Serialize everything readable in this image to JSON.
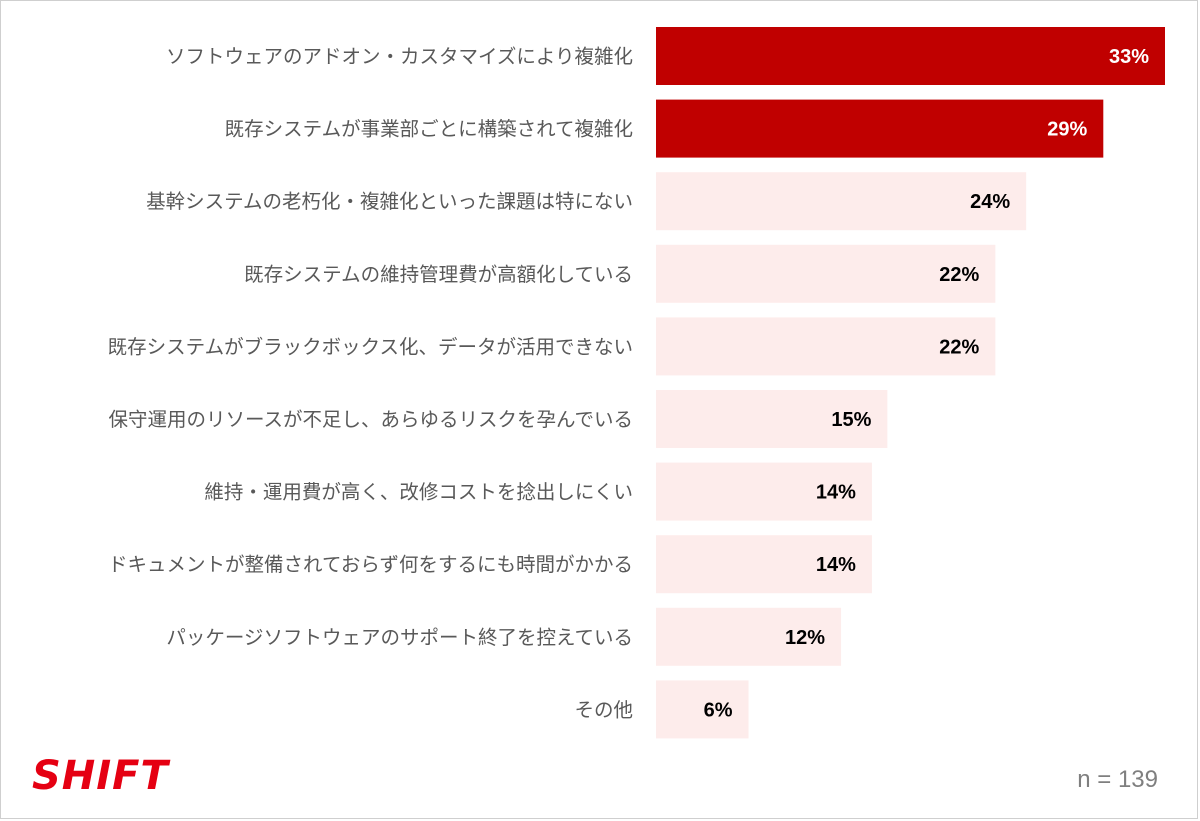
{
  "chart_data": {
    "type": "bar",
    "orientation": "horizontal",
    "categories": [
      "ソフトウェアのアドオン・カスタマイズにより複雑化",
      "既存システムが事業部ごとに構築されて複雑化",
      "基幹システムの老朽化・複雑化といった課題は特にない",
      "既存システムの維持管理費が高額化している",
      "既存システムがブラックボックス化、データが活用できない",
      "保守運用のリソースが不足し、あらゆるリスクを孕んでいる",
      "維持・運用費が高く、改修コストを捻出しにくい",
      "ドキュメントが整備されておらず何をするにも時間がかかる",
      "パッケージソフトウェアのサポート終了を控えている",
      "その他"
    ],
    "values": [
      33,
      29,
      24,
      22,
      22,
      15,
      14,
      14,
      12,
      6
    ],
    "value_labels": [
      "33%",
      "29%",
      "24%",
      "22%",
      "22%",
      "15%",
      "14%",
      "14%",
      "12%",
      "6%"
    ],
    "highlighted_count": 2,
    "xlim": [
      0,
      33
    ],
    "grid": false,
    "legend": "none",
    "colors": {
      "highlight_bar": "#c00000",
      "normal_bar": "#fdeceb",
      "highlight_label": "#ffffff",
      "normal_label": "#000000",
      "category_text": "#595959"
    }
  },
  "footer": {
    "logo_text": "SHIFT",
    "sample_size": "n = 139"
  }
}
